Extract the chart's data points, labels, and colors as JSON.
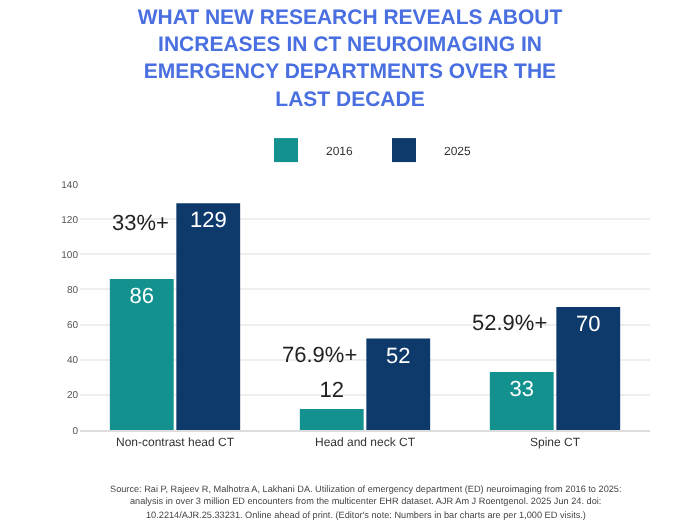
{
  "chart_data": {
    "type": "bar",
    "title": "WHAT NEW RESEARCH REVEALS ABOUT INCREASES IN CT NEUROIMAGING IN EMERGENCY DEPARTMENTS OVER THE LAST DECADE",
    "categories": [
      "Non-contrast head CT",
      "Head and neck CT",
      "Spine CT"
    ],
    "series": [
      {
        "name": "2016",
        "color": "#12918f",
        "values": [
          86,
          12,
          33
        ]
      },
      {
        "name": "2025",
        "color": "#0d3a6b",
        "values": [
          129,
          52,
          70
        ]
      }
    ],
    "ylim": [
      0,
      140
    ],
    "yticks": [
      0,
      20,
      40,
      60,
      80,
      100,
      120,
      140
    ],
    "grid": "y",
    "legend": "top",
    "data_labels": true,
    "annotations": [
      {
        "text": "33%+",
        "x": "Non-contrast head CT",
        "y": 117
      },
      {
        "text": "76.9%+",
        "x": "Head and neck CT",
        "y": 42
      },
      {
        "text": "52.9%+",
        "x": "Spine CT",
        "y": 60
      },
      "Source: Rai P, Rajeev R, Malhotra A, Lakhani DA. Utilization of emergency department (ED) neuroimaging from 2016 to 2025:",
      "analysis in over 3 million ED encounters from the multicenter EHR dataset. AJR Am J Roentgenol. 2025 Jun 24. doi:",
      "10.2214/AJR.25.33231. Online ahead of print. (Editor's note: Numbers in bar charts are per 1,000 ED visits.)"
    ]
  }
}
